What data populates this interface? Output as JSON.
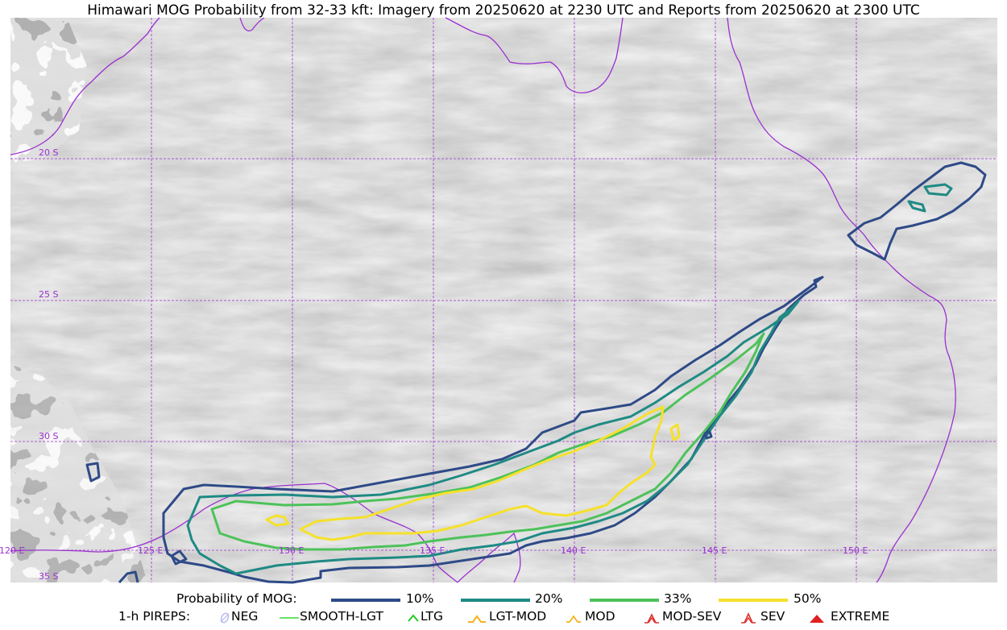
{
  "title": "Himawari MOG Probability from 32-33 kft: Imagery from 20250620 at 2230 UTC and Reports from 20250620 at 2300 UTC",
  "map": {
    "lat_labels": [
      "20 S",
      "25 S",
      "30 S",
      "35 S"
    ],
    "lon_labels": [
      "120 E",
      "125 E",
      "130 E",
      "135 E",
      "140 E",
      "145 E",
      "150 E"
    ],
    "colors": {
      "gridline": "#9b30d0",
      "coastline": "#9b30d0",
      "p10": "#2e4a87",
      "p20": "#1f8a84",
      "p33": "#4dc25a",
      "p50": "#f5e12a"
    }
  },
  "legend": {
    "probability_title": "Probability of MOG:",
    "probability_items": [
      {
        "label": "10%",
        "color": "#2e4a87"
      },
      {
        "label": "20%",
        "color": "#1f8a84"
      },
      {
        "label": "33%",
        "color": "#4dc25a"
      },
      {
        "label": "50%",
        "color": "#f5e12a"
      }
    ],
    "pireps_title": "1-h PIREPS:",
    "pirep_items": [
      {
        "label": "NEG",
        "icon": "neg-icon",
        "color": "#b8b8f0"
      },
      {
        "label": "SMOOTH-LGT",
        "icon": "smooth-lgt-icon",
        "color": "#3ad83a"
      },
      {
        "label": "LTG",
        "icon": "ltg-icon",
        "color": "#22cc22"
      },
      {
        "label": "LGT-MOD",
        "icon": "lgt-mod-icon",
        "color": "#f5b21e"
      },
      {
        "label": "MOD",
        "icon": "mod-icon",
        "color": "#f5b21e"
      },
      {
        "label": "MOD-SEV",
        "icon": "mod-sev-icon",
        "color": "#e03030"
      },
      {
        "label": "SEV",
        "icon": "sev-icon",
        "color": "#e03030"
      },
      {
        "label": "EXTREME",
        "icon": "extreme-icon",
        "color": "#e02020"
      }
    ]
  }
}
